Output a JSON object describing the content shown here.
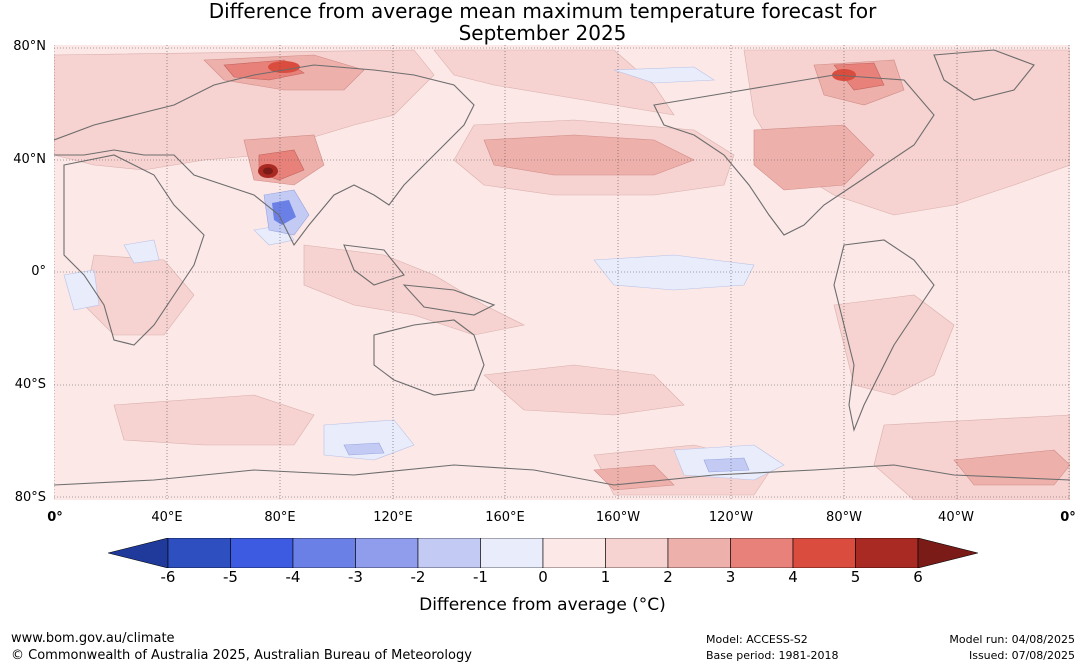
{
  "title": {
    "line1": "Difference from average mean maximum temperature forecast for",
    "line2": "September 2025"
  },
  "map": {
    "lat_labels": [
      "80°N",
      "40°N",
      "0°",
      "40°S",
      "80°S"
    ],
    "lon_labels": [
      "0°",
      "40°E",
      "80°E",
      "120°E",
      "160°E",
      "160°W",
      "120°W",
      "80°W",
      "40°W",
      "0°"
    ]
  },
  "colorbar": {
    "ticks": [
      "-6",
      "-5",
      "-4",
      "-3",
      "-2",
      "-1",
      "0",
      "1",
      "2",
      "3",
      "4",
      "5",
      "6"
    ],
    "colors": [
      "#1f3a9a",
      "#2d4fc0",
      "#3d5be0",
      "#6b80e6",
      "#8f9dec",
      "#c3cbf4",
      "#e8ecfb",
      "#fce8e7",
      "#f6d2d0",
      "#eeb0ab",
      "#e7817a",
      "#d94c3e",
      "#a92a22",
      "#7a1b17"
    ],
    "label": "Difference from average (°C)"
  },
  "footer": {
    "website": "www.bom.gov.au/climate",
    "copyright": "© Commonwealth of Australia 2025, Australian Bureau of Meteorology",
    "model": "Model: ACCESS-S2",
    "base_period": "Base period: 1981-2018",
    "model_run": "Model run: 04/08/2025",
    "issued": "Issued: 07/08/2025"
  }
}
